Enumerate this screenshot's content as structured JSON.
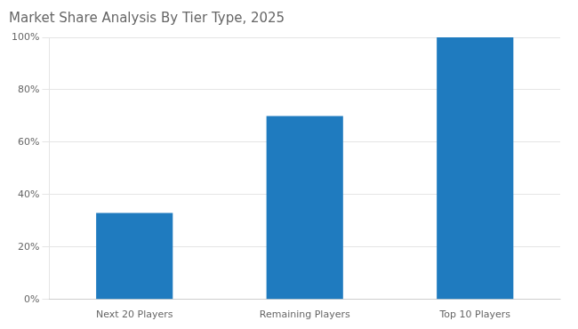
{
  "chart_data": {
    "type": "bar",
    "title": "Market Share Analysis By Tier Type, 2025",
    "categories": [
      "Next 20 Players",
      "Remaining Players",
      "Top 10 Players"
    ],
    "values": [
      33,
      70,
      100
    ],
    "color": "#1f7bbf",
    "ylim": [
      0,
      100
    ],
    "yticks": [
      {
        "value": 0,
        "label": "0%"
      },
      {
        "value": 20,
        "label": "20%"
      },
      {
        "value": 40,
        "label": "40%"
      },
      {
        "value": 60,
        "label": "60%"
      },
      {
        "value": 80,
        "label": "80%"
      },
      {
        "value": 100,
        "label": "100%"
      }
    ],
    "grid": true
  }
}
